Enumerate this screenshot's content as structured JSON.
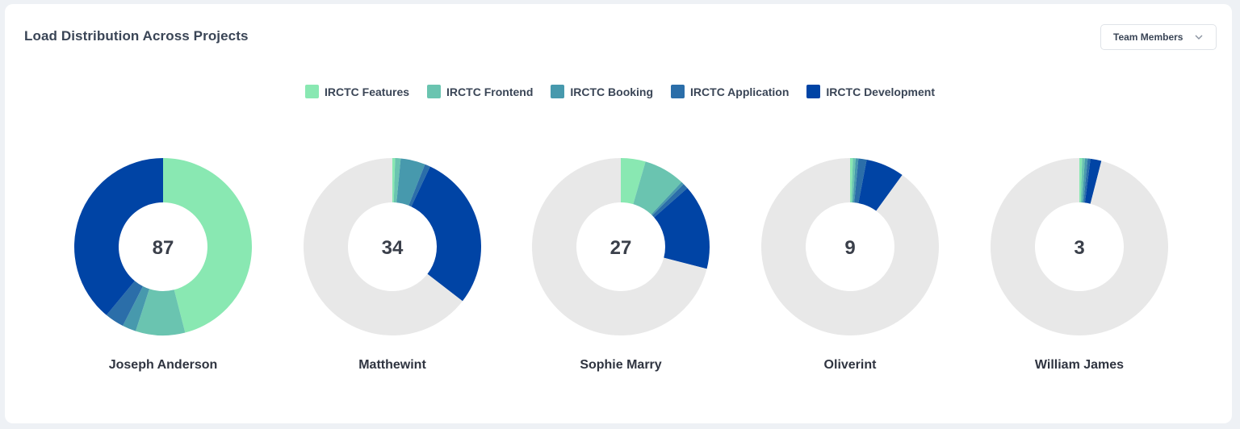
{
  "title": "Load Distribution Across Projects",
  "dropdown": {
    "selected": "Team Members",
    "icon": "chevron-down-icon"
  },
  "colors": {
    "remaining": "#e8e8e8",
    "series": [
      "#89e8b2",
      "#6ac4b0",
      "#4799ad",
      "#2b6ea9",
      "#0044a5"
    ]
  },
  "chart_data": {
    "type": "donut",
    "series": [
      {
        "name": "IRCTC Features"
      },
      {
        "name": "IRCTC Frontend"
      },
      {
        "name": "IRCTC Booking"
      },
      {
        "name": "IRCTC Application"
      },
      {
        "name": "IRCTC Development"
      }
    ],
    "categories": [
      "Joseph Anderson",
      "Matthewint",
      "Sophie Marry",
      "Oliverint",
      "William James"
    ],
    "totals": [
      87,
      34,
      27,
      9,
      3
    ],
    "segments": [
      [
        0.46,
        0.09,
        0.025,
        0.035,
        0.39
      ],
      [
        0.005,
        0.01,
        0.045,
        0.01,
        0.285
      ],
      [
        0.045,
        0.075,
        0.005,
        0.01,
        0.155
      ],
      [
        0.005,
        0.005,
        0.005,
        0.015,
        0.07
      ],
      [
        0.005,
        0.005,
        0.005,
        0.005,
        0.02
      ]
    ],
    "segments_unit": "fraction of full circle, clockwise from 12 o'clock",
    "legend_position": "top-center"
  }
}
